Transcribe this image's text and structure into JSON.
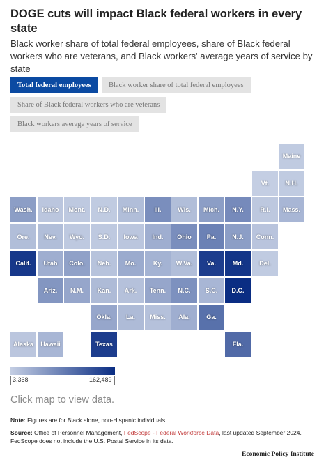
{
  "header": {
    "title": "DOGE cuts will impact Black federal workers in every state",
    "subtitle": "Black worker share of total federal employees, share of Black federal workers who are veterans, and Black workers' average years of service by state"
  },
  "tabs": [
    {
      "label": "Total federal employees",
      "active": true
    },
    {
      "label": "Black worker share of total federal employees",
      "active": false
    },
    {
      "label": "Share of Black federal workers who are veterans",
      "active": false
    },
    {
      "label": "Black workers average years of service",
      "active": false
    }
  ],
  "map": {
    "color_low": "#c4cee3",
    "color_high": "#0a2d83",
    "states": [
      {
        "label": "Maine",
        "level": 0.02
      },
      {
        "label": "Vt.",
        "level": 0.0
      },
      {
        "label": "N.H.",
        "level": 0.02
      },
      {
        "label": "Wash.",
        "level": 0.3
      },
      {
        "label": "Idaho",
        "level": 0.05
      },
      {
        "label": "Mont.",
        "level": 0.03
      },
      {
        "label": "N.D.",
        "level": 0.02
      },
      {
        "label": "Minn.",
        "level": 0.1
      },
      {
        "label": "Ill.",
        "level": 0.4
      },
      {
        "label": "Wis.",
        "level": 0.1
      },
      {
        "label": "Mich.",
        "level": 0.3
      },
      {
        "label": "N.Y.",
        "level": 0.42
      },
      {
        "label": "R.I.",
        "level": 0.04
      },
      {
        "label": "Mass.",
        "level": 0.15
      },
      {
        "label": "Ore.",
        "level": 0.1
      },
      {
        "label": "Nev.",
        "level": 0.1
      },
      {
        "label": "Wyo.",
        "level": 0.03
      },
      {
        "label": "S.D.",
        "level": 0.03
      },
      {
        "label": "Iowa",
        "level": 0.05
      },
      {
        "label": "Ind.",
        "level": 0.2
      },
      {
        "label": "Ohio",
        "level": 0.4
      },
      {
        "label": "Pa.",
        "level": 0.48
      },
      {
        "label": "N.J.",
        "level": 0.3
      },
      {
        "label": "Conn.",
        "level": 0.06
      },
      {
        "label": "Calif.",
        "level": 0.93
      },
      {
        "label": "Utah",
        "level": 0.2
      },
      {
        "label": "Colo.",
        "level": 0.28
      },
      {
        "label": "Neb.",
        "level": 0.07
      },
      {
        "label": "Mo.",
        "level": 0.22
      },
      {
        "label": "Ky.",
        "level": 0.17
      },
      {
        "label": "W.Va.",
        "level": 0.1
      },
      {
        "label": "Va.",
        "level": 0.9
      },
      {
        "label": "Md.",
        "level": 0.95
      },
      {
        "label": "Del.",
        "level": 0.02
      },
      {
        "label": "Ariz.",
        "level": 0.35
      },
      {
        "label": "N.M.",
        "level": 0.25
      },
      {
        "label": "Kan.",
        "level": 0.12
      },
      {
        "label": "Ark.",
        "level": 0.08
      },
      {
        "label": "Tenn.",
        "level": 0.25
      },
      {
        "label": "N.C.",
        "level": 0.38
      },
      {
        "label": "S.C.",
        "level": 0.15
      },
      {
        "label": "D.C.",
        "level": 1.0
      },
      {
        "label": "Okla.",
        "level": 0.25
      },
      {
        "label": "La.",
        "level": 0.12
      },
      {
        "label": "Miss.",
        "level": 0.08
      },
      {
        "label": "Ala.",
        "level": 0.2
      },
      {
        "label": "Ga.",
        "level": 0.58
      },
      {
        "label": "Alaska",
        "level": 0.05
      },
      {
        "label": "Hawaii",
        "level": 0.15
      },
      {
        "label": "Texas",
        "level": 0.9
      },
      {
        "label": "Fla.",
        "level": 0.62
      }
    ]
  },
  "legend": {
    "min": "3,368",
    "max": "162,489"
  },
  "click_hint": "Click map to view data.",
  "note": {
    "label": "Note:",
    "text": "Figures are for Black alone, non-Hispanic individuals."
  },
  "source": {
    "label": "Source:",
    "text_before": "Office of Personnel Management, ",
    "link_text": "FedScope - Federal Workforce Data",
    "text_after": ", last updated September 2024. FedScope does not include the U.S. Postal Service in its data."
  },
  "brand": "Economic Policy Institute"
}
